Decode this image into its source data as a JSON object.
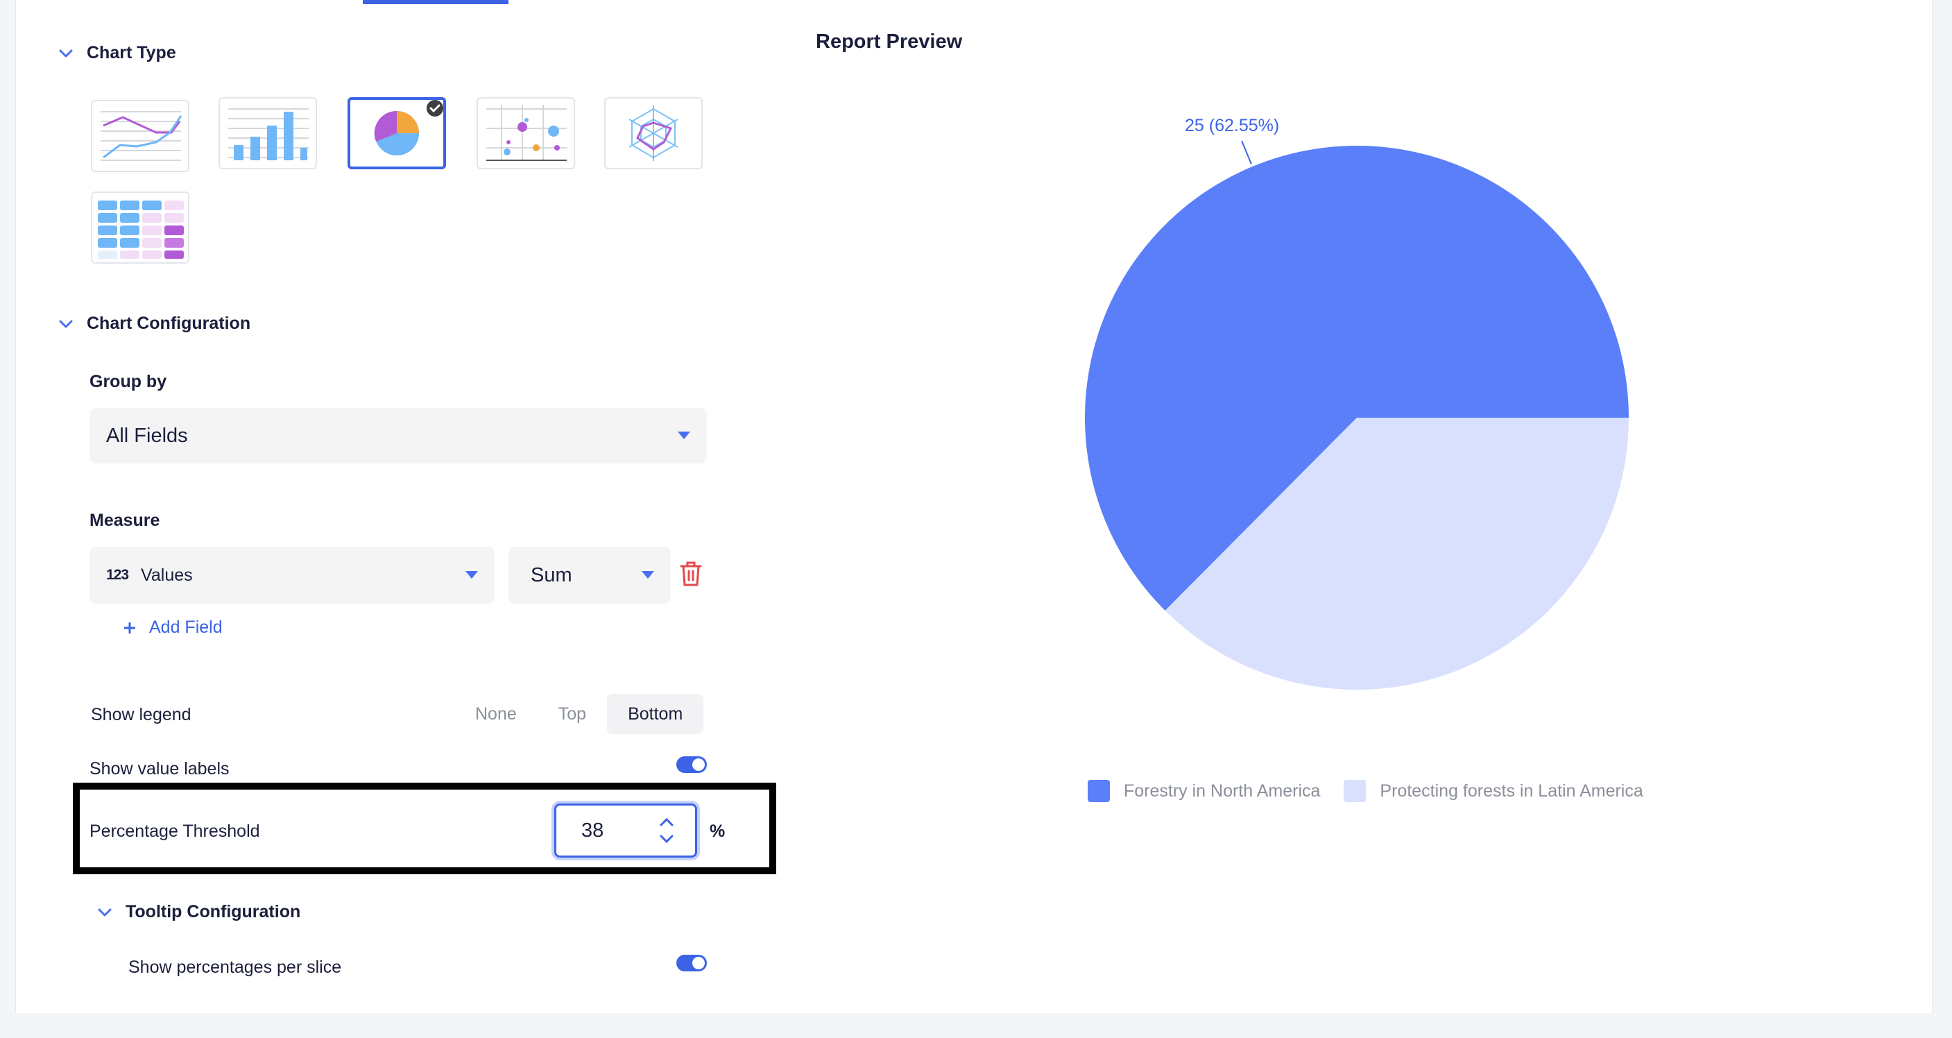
{
  "sections": {
    "chart_type": "Chart Type",
    "chart_config": "Chart Configuration",
    "tooltip_config": "Tooltip Configuration"
  },
  "chart_types": [
    {
      "name": "line-chart",
      "selected": false
    },
    {
      "name": "bar-chart",
      "selected": false
    },
    {
      "name": "pie-chart",
      "selected": true
    },
    {
      "name": "scatter-chart",
      "selected": false
    },
    {
      "name": "radar-chart",
      "selected": false
    },
    {
      "name": "table-chart",
      "selected": false
    }
  ],
  "group_by": {
    "label": "Group by",
    "value": "All Fields"
  },
  "measure": {
    "label": "Measure",
    "field_icon": "123",
    "field": "Values",
    "aggregation": "Sum",
    "add_field": "Add Field"
  },
  "legend_setting": {
    "label": "Show legend",
    "options": [
      "None",
      "Top",
      "Bottom"
    ],
    "selected": "Bottom"
  },
  "value_labels": {
    "label": "Show value labels",
    "enabled": true
  },
  "threshold": {
    "label": "Percentage Threshold",
    "value": "38",
    "unit": "%"
  },
  "tooltip": {
    "label": "Show percentages per slice",
    "enabled": true
  },
  "preview": {
    "title": "Report Preview"
  },
  "colors": {
    "accent": "#3b63e4",
    "slice1": "#5a7ff9",
    "slice2": "#d8e0fd",
    "delete": "#e5484d"
  },
  "chart_data": {
    "type": "pie",
    "slices": [
      {
        "label": "Forestry in North America",
        "value": 25,
        "percent": 62.55,
        "data_label": "25 (62.55%)"
      },
      {
        "label": "Protecting forests in Latin America",
        "value": 14.97,
        "percent": 37.45
      }
    ],
    "legend_position": "bottom"
  }
}
